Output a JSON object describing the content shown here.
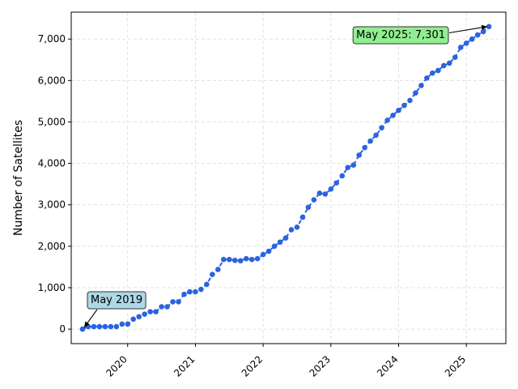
{
  "chart_data": {
    "type": "line",
    "title": "",
    "xlabel": "",
    "ylabel": "Number of Satellites",
    "x_ticks": [
      "2020",
      "2021",
      "2022",
      "2023",
      "2024",
      "2025"
    ],
    "y_ticks": [
      "0",
      "1,000",
      "2,000",
      "3,000",
      "4,000",
      "5,000",
      "6,000",
      "7,000"
    ],
    "xlim": [
      "2019-03-01",
      "2025-08-01"
    ],
    "ylim": [
      -350,
      7650
    ],
    "grid": true,
    "line_color": "#2b63e0",
    "series": [
      {
        "x": [
          "2019-05",
          "2019-06",
          "2019-07",
          "2019-08",
          "2019-09",
          "2019-10",
          "2019-11",
          "2019-12",
          "2020-01",
          "2020-02",
          "2020-03",
          "2020-04",
          "2020-05",
          "2020-06",
          "2020-07",
          "2020-08",
          "2020-09",
          "2020-10",
          "2020-11",
          "2020-12",
          "2021-01",
          "2021-02",
          "2021-03",
          "2021-04",
          "2021-05",
          "2021-06",
          "2021-07",
          "2021-08",
          "2021-09",
          "2021-10",
          "2021-11",
          "2021-12",
          "2022-01",
          "2022-02",
          "2022-03",
          "2022-04",
          "2022-05",
          "2022-06",
          "2022-07",
          "2022-08",
          "2022-09",
          "2022-10",
          "2022-11",
          "2022-12",
          "2023-01",
          "2023-02",
          "2023-03",
          "2023-04",
          "2023-05",
          "2023-06",
          "2023-07",
          "2023-08",
          "2023-09",
          "2023-10",
          "2023-11",
          "2023-12",
          "2024-01",
          "2024-02",
          "2024-03",
          "2024-04",
          "2024-05",
          "2024-06",
          "2024-07",
          "2024-08",
          "2024-09",
          "2024-10",
          "2024-11",
          "2024-12",
          "2025-01",
          "2025-02",
          "2025-03",
          "2025-04",
          "2025-05"
        ],
        "y": [
          0,
          60,
          60,
          60,
          60,
          60,
          60,
          120,
          120,
          240,
          300,
          360,
          420,
          420,
          540,
          540,
          660,
          660,
          840,
          900,
          900,
          960,
          1080,
          1320,
          1440,
          1680,
          1680,
          1660,
          1650,
          1700,
          1680,
          1700,
          1800,
          1880,
          2000,
          2100,
          2200,
          2400,
          2460,
          2700,
          2940,
          3120,
          3280,
          3260,
          3380,
          3530,
          3700,
          3900,
          3960,
          4200,
          4380,
          4540,
          4680,
          4860,
          5040,
          5160,
          5280,
          5400,
          5520,
          5700,
          5880,
          6060,
          6180,
          6240,
          6360,
          6420,
          6560,
          6800,
          6900,
          7000,
          7100,
          7180,
          7301
        ]
      }
    ],
    "annotations": [
      {
        "text": "May 2019",
        "x": "2019-05",
        "y": 0,
        "box_color": "#add8e6"
      },
      {
        "text": "May 2025: 7,301",
        "x": "2025-05",
        "y": 7301,
        "box_color": "#90ee90"
      }
    ]
  }
}
